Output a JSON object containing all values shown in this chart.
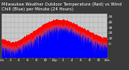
{
  "bg_color": "#3a3a3a",
  "plot_bg_color": "#c8c8c8",
  "grid_color": "#888888",
  "temp_color": "#ff0000",
  "windchill_color": "#0000ff",
  "ylim_min": -25,
  "ylim_max": 55,
  "xlim_min": 0,
  "xlim_max": 1440,
  "ytick_values": [
    0,
    10,
    20,
    30,
    40,
    50
  ],
  "n_points": 1440,
  "title_fontsize": 3.8,
  "tick_fontsize": 3.0,
  "linewidth": 0.5
}
